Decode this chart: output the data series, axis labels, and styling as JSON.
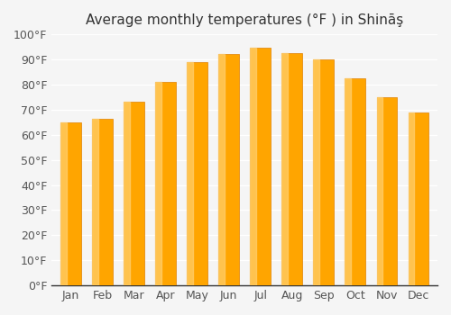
{
  "title": "Average monthly temperatures (°F ) in Shināş",
  "months": [
    "Jan",
    "Feb",
    "Mar",
    "Apr",
    "May",
    "Jun",
    "Jul",
    "Aug",
    "Sep",
    "Oct",
    "Nov",
    "Dec"
  ],
  "values": [
    65,
    66.5,
    73,
    81,
    89,
    92,
    94.5,
    92.5,
    90,
    82.5,
    75,
    69
  ],
  "ylim": [
    0,
    100
  ],
  "yticks": [
    0,
    10,
    20,
    30,
    40,
    50,
    60,
    70,
    80,
    90,
    100
  ],
  "ytick_labels": [
    "0°F",
    "10°F",
    "20°F",
    "30°F",
    "40°F",
    "50°F",
    "60°F",
    "70°F",
    "80°F",
    "90°F",
    "100°F"
  ],
  "bar_color_main": "#FFA500",
  "bar_color_light": "#FFD070",
  "bar_color_edge": "#E08000",
  "background_color": "#f5f5f5",
  "grid_color": "#ffffff",
  "title_fontsize": 11,
  "tick_fontsize": 9,
  "figsize": [
    5.0,
    3.5
  ],
  "dpi": 100
}
